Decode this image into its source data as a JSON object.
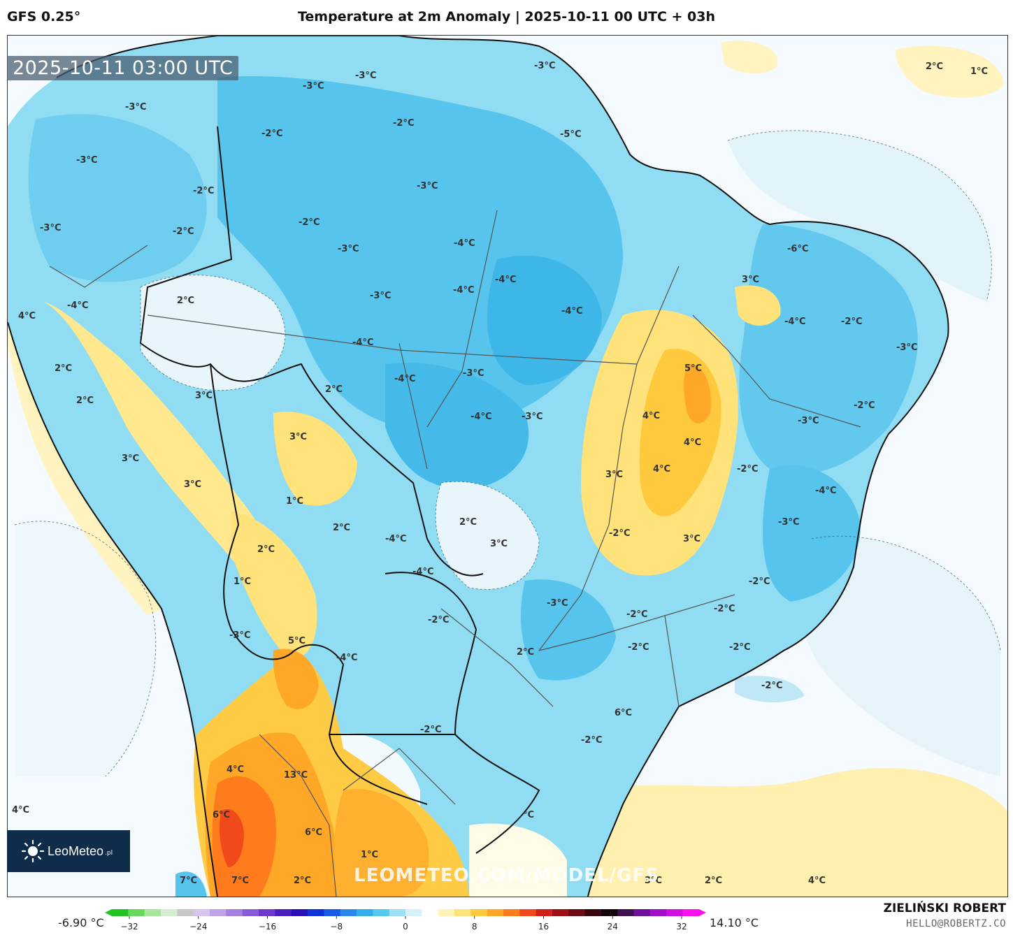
{
  "header": {
    "model": "GFS 0.25°",
    "title": "Temperature at 2m Anomaly | 2025-10-11 00 UTC + 03h"
  },
  "map": {
    "timestamp": "2025-10-11 03:00 UTC",
    "region": "South America",
    "contour_labels": [
      {
        "text": "2°C"
      },
      {
        "text": "1°C"
      },
      {
        "text": "-3°C"
      },
      {
        "text": "-3°C"
      },
      {
        "text": "-3°C"
      },
      {
        "text": "-3°C"
      },
      {
        "text": "-2°C"
      },
      {
        "text": "-5°C"
      },
      {
        "text": "-3°C"
      },
      {
        "text": "-3°C"
      },
      {
        "text": "-2°C"
      },
      {
        "text": "-2°C"
      },
      {
        "text": "-2°C"
      },
      {
        "text": "-3°C"
      },
      {
        "text": "-4°C"
      },
      {
        "text": "-4°C"
      },
      {
        "text": "-3°C"
      },
      {
        "text": "-4°C"
      },
      {
        "text": "-4°C"
      },
      {
        "text": "-2°C"
      },
      {
        "text": "-6°C"
      },
      {
        "text": "3°C"
      },
      {
        "text": "-4°C"
      },
      {
        "text": "-4°C"
      },
      {
        "text": "-2°C"
      },
      {
        "text": "-3°C"
      },
      {
        "text": "4°C"
      },
      {
        "text": "2°C"
      },
      {
        "text": "-4°C"
      },
      {
        "text": "-4°C"
      },
      {
        "text": "-3°C"
      },
      {
        "text": "5°C"
      },
      {
        "text": "-3°C"
      },
      {
        "text": "2°C"
      },
      {
        "text": "3°C"
      },
      {
        "text": "2°C"
      },
      {
        "text": "2°C"
      },
      {
        "text": "-4°C"
      },
      {
        "text": "-3°C"
      },
      {
        "text": "-2°C"
      },
      {
        "text": "4°C"
      },
      {
        "text": "-3°C"
      },
      {
        "text": "3°C"
      },
      {
        "text": "3°C"
      },
      {
        "text": "4°C"
      },
      {
        "text": "3°C"
      },
      {
        "text": "-2°C"
      },
      {
        "text": "4°C"
      },
      {
        "text": "3°C"
      },
      {
        "text": "1°C"
      },
      {
        "text": "-4°C"
      },
      {
        "text": "-3°C"
      },
      {
        "text": "2°C"
      },
      {
        "text": "2°C"
      },
      {
        "text": "3°C"
      },
      {
        "text": "-4°C"
      },
      {
        "text": "2°C"
      },
      {
        "text": "3°C"
      },
      {
        "text": "1°C"
      },
      {
        "text": "-4°C"
      },
      {
        "text": "-2°C"
      },
      {
        "text": "-3°C"
      },
      {
        "text": "-2°C"
      },
      {
        "text": "-2°C"
      },
      {
        "text": "-3°C"
      },
      {
        "text": "5°C"
      },
      {
        "text": "-4°C"
      },
      {
        "text": "-2°C"
      },
      {
        "text": "2°C"
      },
      {
        "text": "-2°C"
      },
      {
        "text": "-2°C"
      },
      {
        "text": "-2°C"
      },
      {
        "text": "-2°C"
      },
      {
        "text": "-2°C"
      },
      {
        "text": "-2°C"
      },
      {
        "text": "6°C"
      },
      {
        "text": "4°C"
      },
      {
        "text": "13°C"
      },
      {
        "text": "6°C"
      },
      {
        "text": "6°C"
      },
      {
        "text": "1°C"
      },
      {
        "text": "4°C"
      },
      {
        "text": "7°C"
      },
      {
        "text": "7°C"
      },
      {
        "text": "2°C"
      },
      {
        "text": "°C"
      },
      {
        "text": "3°C"
      },
      {
        "text": "2°C"
      },
      {
        "text": "4°C"
      }
    ]
  },
  "watermark": "LEOMETEO.COM/MODEL/GFS",
  "logo": {
    "name": "LeoMeteo",
    "suffix": ".pl"
  },
  "legend": {
    "min_label": "-6.90 °C",
    "max_label": "14.10 °C",
    "ticks": [
      "−32",
      "−24",
      "−16",
      "−8",
      "0",
      "8",
      "16",
      "24",
      "32"
    ],
    "colors": [
      "#22c41f",
      "#66d95a",
      "#a6e89b",
      "#d4efd0",
      "#c8c8c8",
      "#d9c4ef",
      "#bfa2ea",
      "#a57fe2",
      "#8a5bd8",
      "#6f37cc",
      "#4a1fc0",
      "#2a10b8",
      "#1030d8",
      "#1a5ae8",
      "#2a88f0",
      "#35aeee",
      "#55c8ef",
      "#9ddff5",
      "#d6f1fa",
      "#ffffff",
      "#fff3b8",
      "#ffe27a",
      "#ffc93d",
      "#ffa726",
      "#ff7b1c",
      "#f04a1a",
      "#d0201a",
      "#a00f18",
      "#6d0a14",
      "#3a0610",
      "#120408",
      "#401050",
      "#7010a0",
      "#a010c8",
      "#d010e0",
      "#ff10f0"
    ]
  },
  "footer": {
    "author": "ZIELIŃSKI ROBERT",
    "email": "HELLO@ROBERTZ.CO"
  }
}
